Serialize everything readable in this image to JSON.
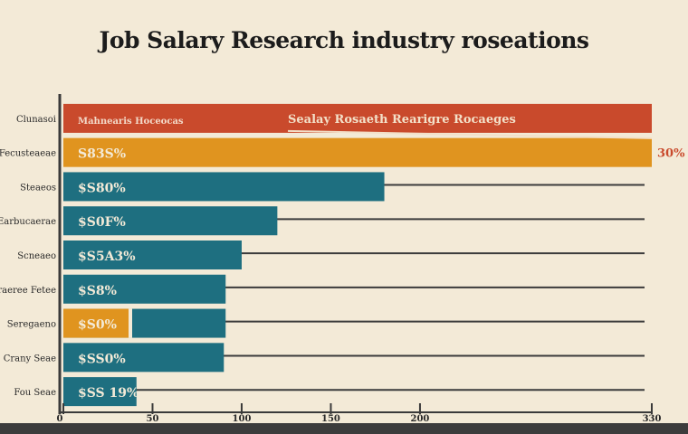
{
  "page": {
    "title": "Job Salary Research industry roseations"
  },
  "chart_data": {
    "type": "bar",
    "orientation": "horizontal",
    "title": "Job Salary Research industry roseations",
    "xlim": [
      0,
      330
    ],
    "x_ticks": [
      "0",
      "50",
      "100",
      "150",
      "200",
      "330"
    ],
    "x_tick_values": [
      0,
      50,
      100,
      150,
      200,
      330
    ],
    "categories": [
      "Clunasoi",
      "Fecusteaeae",
      "Steaeos",
      "Earbucaerae",
      "Scneaeo",
      "Sporaeree Fetee",
      "Seregaeno",
      "Crany Seae",
      "Fou Seae"
    ],
    "values": [
      330,
      330,
      180,
      120,
      100,
      91,
      91,
      90,
      41
    ],
    "bar_colors": [
      "#c94a2c",
      "#e0941f",
      "#1e6f80",
      "#1e6f80",
      "#1e6f80",
      "#1e6f80",
      "#1e6f80",
      "#1e6f80",
      "#1e6f80"
    ],
    "bar_labels": [
      "Mahnearis Hoceocas",
      "S83S%",
      "$S80%",
      "$S0F%",
      "$S5A3%",
      "$S8%",
      "$S0%",
      "$SS0%",
      "$SS 19%"
    ],
    "secondary_bar": {
      "category_index": 6,
      "color": "#1e6f80"
    },
    "first_row_inner_label": "Sealay Rosaeth Rearigre Rocaeges",
    "end_label": "30%",
    "grid": true,
    "xlabel": "",
    "ylabel": ""
  },
  "colors": {
    "background": "#f3ead7",
    "axis": "#3a3a3a",
    "label_text": "#f3ead7",
    "end_label": "#c94a2c"
  }
}
